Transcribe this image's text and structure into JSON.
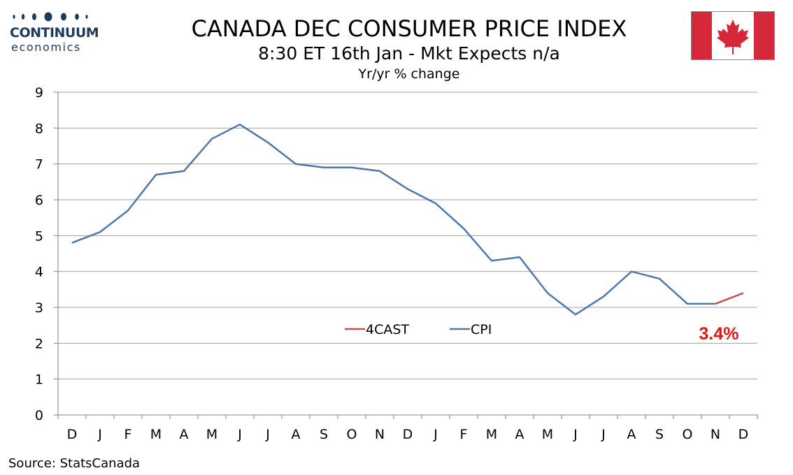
{
  "logo": {
    "name": "CONTINUUM",
    "sub": "economics",
    "color": "#1f3a5a"
  },
  "header": {
    "title": "CANADA DEC CONSUMER PRICE INDEX",
    "subtitle": "8:30 ET 16th Jan - Mkt Expects n/a",
    "subtitle2": "Yr/yr % change"
  },
  "flag": {
    "icon": "canada-flag-icon",
    "red": "#d5283a"
  },
  "footer": {
    "source": "Source: StatsCanada"
  },
  "chart_data": {
    "type": "line",
    "categories": [
      "D",
      "J",
      "F",
      "M",
      "A",
      "M",
      "J",
      "J",
      "A",
      "S",
      "O",
      "N",
      "D",
      "J",
      "F",
      "M",
      "A",
      "M",
      "J",
      "J",
      "A",
      "S",
      "O",
      "N",
      "D"
    ],
    "ylim": [
      0,
      9
    ],
    "yticks": [
      0,
      1,
      2,
      3,
      4,
      5,
      6,
      7,
      8,
      9
    ],
    "grid": true,
    "legend_position": "center-right",
    "series": [
      {
        "name": "CPI",
        "color": "#4f77aa",
        "values": [
          4.8,
          5.1,
          5.7,
          6.7,
          6.8,
          7.7,
          8.1,
          7.6,
          7.0,
          6.9,
          6.9,
          6.8,
          6.3,
          5.9,
          5.2,
          4.3,
          4.4,
          3.4,
          2.8,
          3.3,
          4.0,
          3.8,
          3.1,
          3.1,
          null
        ]
      },
      {
        "name": "4CAST",
        "color": "#c0504d",
        "values": [
          null,
          null,
          null,
          null,
          null,
          null,
          null,
          null,
          null,
          null,
          null,
          null,
          null,
          null,
          null,
          null,
          null,
          null,
          null,
          null,
          null,
          null,
          null,
          3.1,
          3.4
        ]
      }
    ],
    "legend_order": [
      "4CAST",
      "CPI"
    ],
    "annotations": [
      {
        "text": "3.4%",
        "color": "#e8130f"
      }
    ]
  }
}
